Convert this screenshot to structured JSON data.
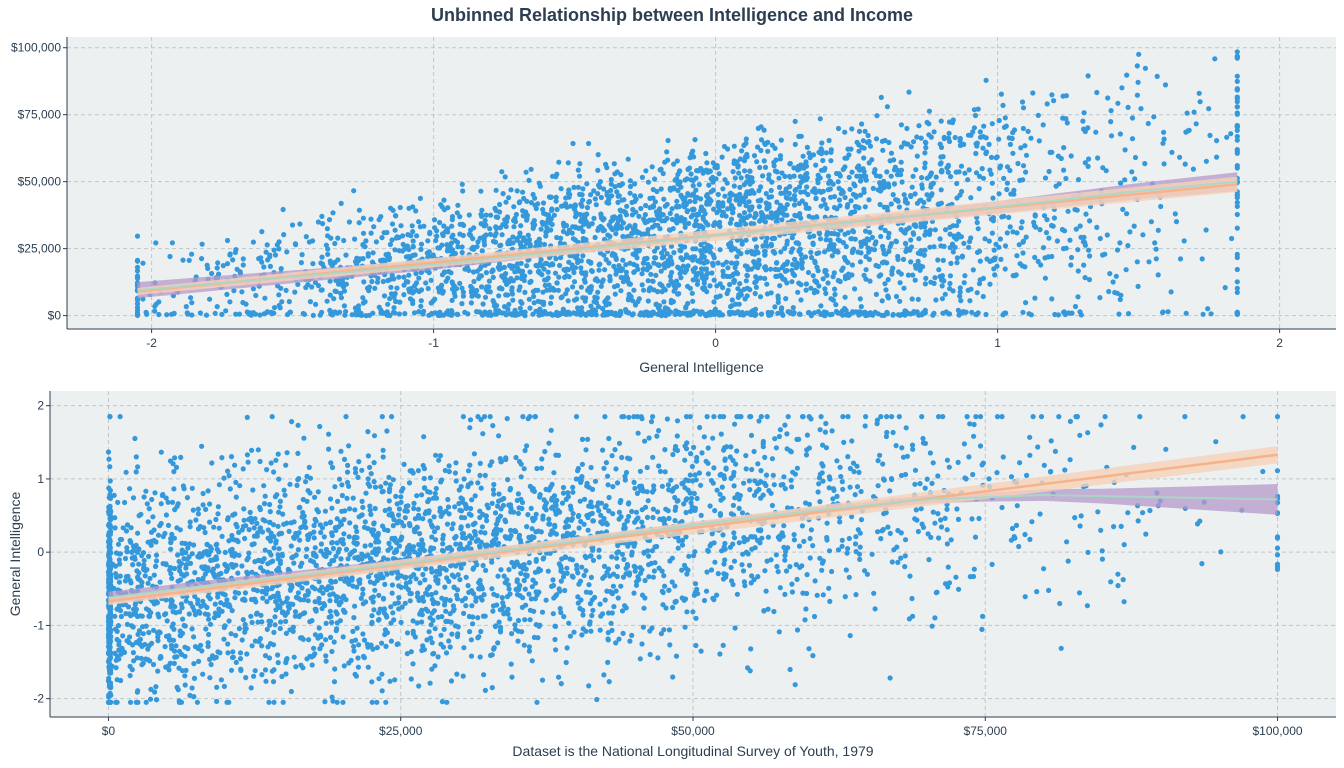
{
  "title": "Unbinned Relationship between Intelligence and Income",
  "colors": {
    "panel_bg": "#ecf0f1",
    "grid": "#c1c6c9",
    "points": "#3498db",
    "ribbon": "#b799c9",
    "fit_linear": "#f8b28a",
    "fit_loess": "#a6d9c8",
    "text": "#2c3e50"
  },
  "chart_data": [
    {
      "type": "scatter",
      "title": "",
      "xlabel": "General Intelligence",
      "ylabel": "",
      "xlim": [
        -2.3,
        2.2
      ],
      "ylim": [
        -5000,
        104000
      ],
      "x_ticks": [
        -2,
        -1,
        0,
        1,
        2
      ],
      "x_tick_labels": [
        "-2",
        "-1",
        "0",
        "1",
        "2"
      ],
      "y_ticks": [
        0,
        25000,
        50000,
        75000,
        100000
      ],
      "y_tick_labels": [
        "$0",
        "$25,000",
        "$50,000",
        "$75,000",
        "$100,000"
      ],
      "grid": true,
      "n_points": 3500,
      "x_range_observed": [
        -2.05,
        1.85
      ],
      "linear_fit": {
        "x": [
          -2.05,
          1.85
        ],
        "y": [
          9000,
          49000
        ]
      },
      "loess_fit": {
        "x": [
          -2.05,
          -1.5,
          -1.0,
          -0.5,
          0.0,
          0.5,
          1.0,
          1.5,
          1.85
        ],
        "y": [
          9500,
          14500,
          19000,
          24500,
          30000,
          35000,
          40500,
          46500,
          50000
        ]
      },
      "ribbon_halfwidth": {
        "x": [
          -2.05,
          0.0,
          1.85
        ],
        "y": [
          3000,
          800,
          3500
        ]
      }
    },
    {
      "type": "scatter",
      "title": "",
      "xlabel": "Dataset is the National Longitudinal Survey of Youth, 1979",
      "ylabel": "General Intelligence",
      "xlim": [
        -5000,
        105000
      ],
      "ylim": [
        -2.25,
        2.2
      ],
      "x_ticks": [
        0,
        25000,
        50000,
        75000,
        100000
      ],
      "x_tick_labels": [
        "$0",
        "$25,000",
        "$50,000",
        "$75,000",
        "$100,000"
      ],
      "y_ticks": [
        -2,
        -1,
        0,
        1,
        2
      ],
      "y_tick_labels": [
        "-2",
        "-1",
        "0",
        "1",
        "2"
      ],
      "grid": true,
      "n_points": 3500,
      "linear_fit": {
        "x": [
          0,
          100000
        ],
        "y": [
          -0.67,
          1.33
        ]
      },
      "loess_fit": {
        "x": [
          0,
          10000,
          25000,
          40000,
          50000,
          60000,
          70000,
          80000,
          90000,
          100000
        ],
        "y": [
          -0.62,
          -0.43,
          -0.16,
          0.15,
          0.37,
          0.56,
          0.72,
          0.78,
          0.75,
          0.72
        ]
      },
      "ribbon_halfwidth": {
        "x": [
          0,
          50000,
          75000,
          85000,
          100000
        ],
        "y": [
          0.08,
          0.04,
          0.06,
          0.1,
          0.21
        ]
      }
    }
  ]
}
